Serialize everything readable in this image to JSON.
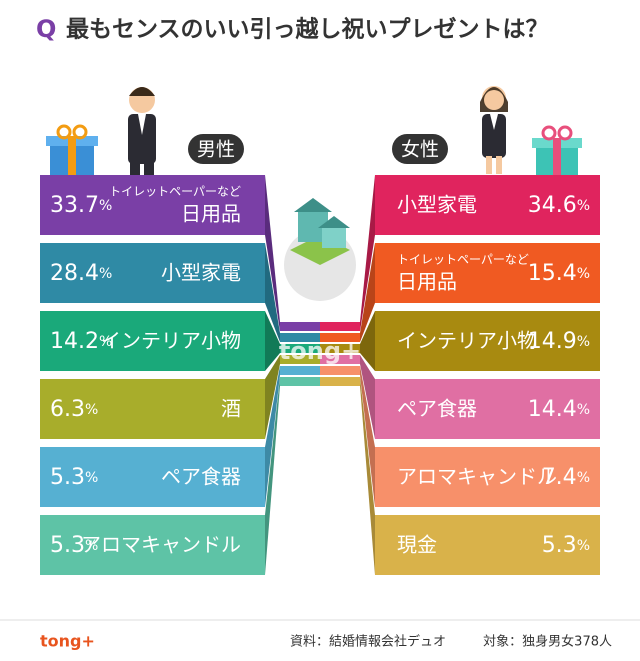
{
  "title_mark": "Q",
  "title": "最もセンスのいい引っ越し祝いプレゼントは？",
  "unit": "%",
  "male": {
    "heading": "男性",
    "items": [
      {
        "note": "トイレットペーパーなど",
        "label": "日用品",
        "value": 33.7
      },
      {
        "label": "小型家電",
        "value": 28.4
      },
      {
        "label": "インテリア小物",
        "value": 14.2
      },
      {
        "label": "酒",
        "value": 6.3
      },
      {
        "label": "ペア食器",
        "value": 5.3
      },
      {
        "label": "アロマキャンドル",
        "value": 5.3
      }
    ]
  },
  "female": {
    "heading": "女性",
    "items": [
      {
        "label": "小型家電",
        "value": 34.6
      },
      {
        "note": "トイレットペーパーなど",
        "label": "日用品",
        "value": 15.4
      },
      {
        "label": "インテリア小物",
        "value": 14.9
      },
      {
        "label": "ペア食器",
        "value": 14.4
      },
      {
        "label": "アロマキャンドル",
        "value": 7.4
      },
      {
        "label": "現金",
        "value": 5.3
      }
    ]
  },
  "watermark": "tong+",
  "logo": "tong+",
  "source": "資料：結婚情報会社デュオ",
  "target": "対象：独身男女378人"
}
